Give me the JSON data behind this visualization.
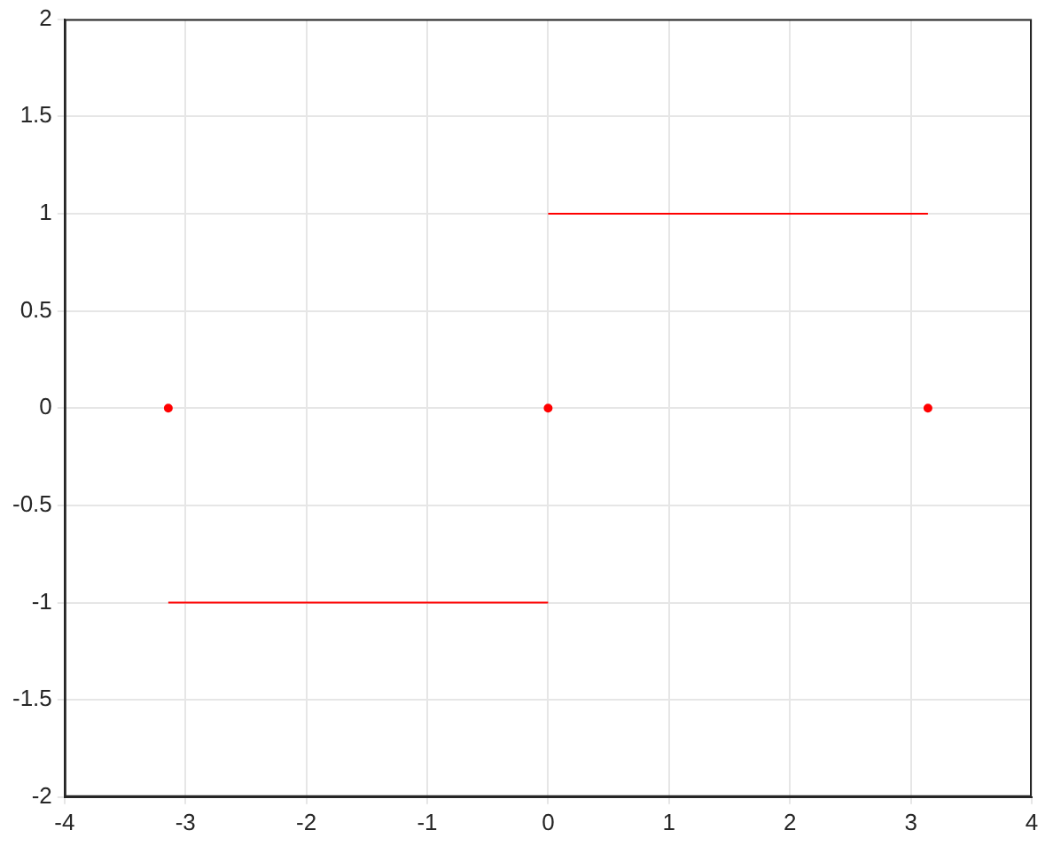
{
  "chart_data": {
    "type": "line",
    "xlim": [
      -4,
      4
    ],
    "ylim": [
      -2,
      2
    ],
    "xticks": [
      -4,
      -3,
      -2,
      -1,
      0,
      1,
      2,
      3,
      4
    ],
    "yticks": [
      -2,
      -1.5,
      -1,
      -0.5,
      0,
      0.5,
      1,
      1.5,
      2
    ],
    "grid": true,
    "legend": false,
    "line_style": "solid",
    "series": [
      {
        "color": "#ff0000",
        "marker": "none",
        "x": [
          -3.1416,
          0
        ],
        "values": [
          -1,
          -1
        ]
      },
      {
        "color": "#ff0000",
        "marker": "none",
        "x": [
          0,
          3.1416
        ],
        "values": [
          1,
          1
        ]
      },
      {
        "type": "scatter",
        "marker": "circle",
        "color": "#ff0000",
        "x": [
          -3.1416,
          0,
          3.1416
        ],
        "values": [
          0,
          0,
          0
        ]
      }
    ]
  }
}
